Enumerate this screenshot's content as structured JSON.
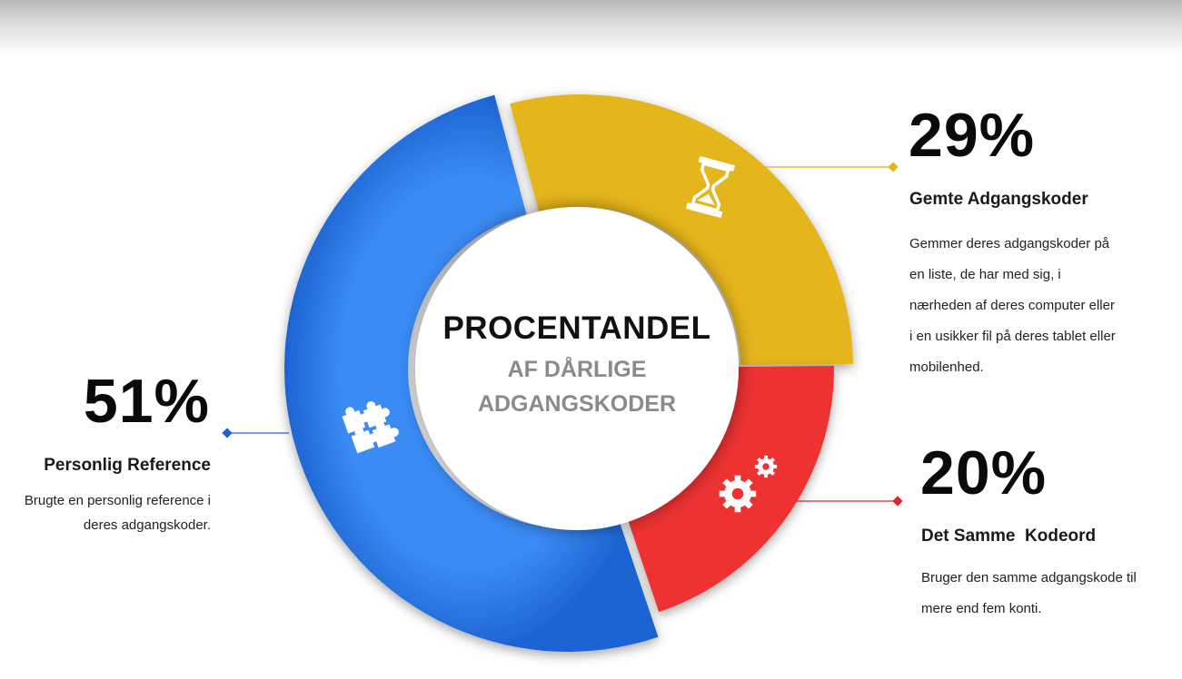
{
  "chart_data": {
    "type": "pie",
    "style": "donut",
    "title": "PROCENTANDEL",
    "subtitle": "AF DÅRLIGE ADGANGSKODER",
    "slices": [
      {
        "label": "Personlig Reference",
        "value": 51,
        "value_label": "51%",
        "description": "Brugte en personlig reference i deres adgangskoder.",
        "color": "#3b8bf4",
        "icon": "puzzle-icon"
      },
      {
        "label": "Gemte Adgangskoder",
        "value": 29,
        "value_label": "29%",
        "description": "Gemmer deres adgangskoder på en liste, de har med sig, i nærheden af deres computer eller i en usikker fil på deres tablet eller mobilenhed.",
        "color": "#e5b51b",
        "icon": "hourglass-icon"
      },
      {
        "label": "Det Samme  Kodeord",
        "value": 20,
        "value_label": "20%",
        "description": "Bruger den samme adgangskode til mere end fem konti.",
        "color": "#ee3033",
        "icon": "gears-icon"
      }
    ],
    "legend": "none"
  },
  "center": {
    "title_line": "PROCENTANDEL",
    "subtitle_line1": "AF DÅRLIGE",
    "subtitle_line2": "ADGANGSKODER"
  },
  "callouts": {
    "blue": {
      "pct": "51%",
      "heading": "Personlig Reference",
      "desc_lines": [
        "Brugte en personlig reference i",
        "deres adgangskoder."
      ]
    },
    "yellow": {
      "pct": "29%",
      "heading": "Gemte Adgangskoder",
      "desc_lines": [
        "Gemmer deres adgangskoder på",
        "en liste, de har med sig, i",
        "nærheden af deres computer eller",
        "i en usikker fil på deres tablet eller",
        "mobilenhed."
      ]
    },
    "red": {
      "pct": "20%",
      "heading": "Det Samme  Kodeord",
      "desc_lines": [
        "Bruger den samme adgangskode til",
        "mere end fem konti."
      ]
    }
  }
}
